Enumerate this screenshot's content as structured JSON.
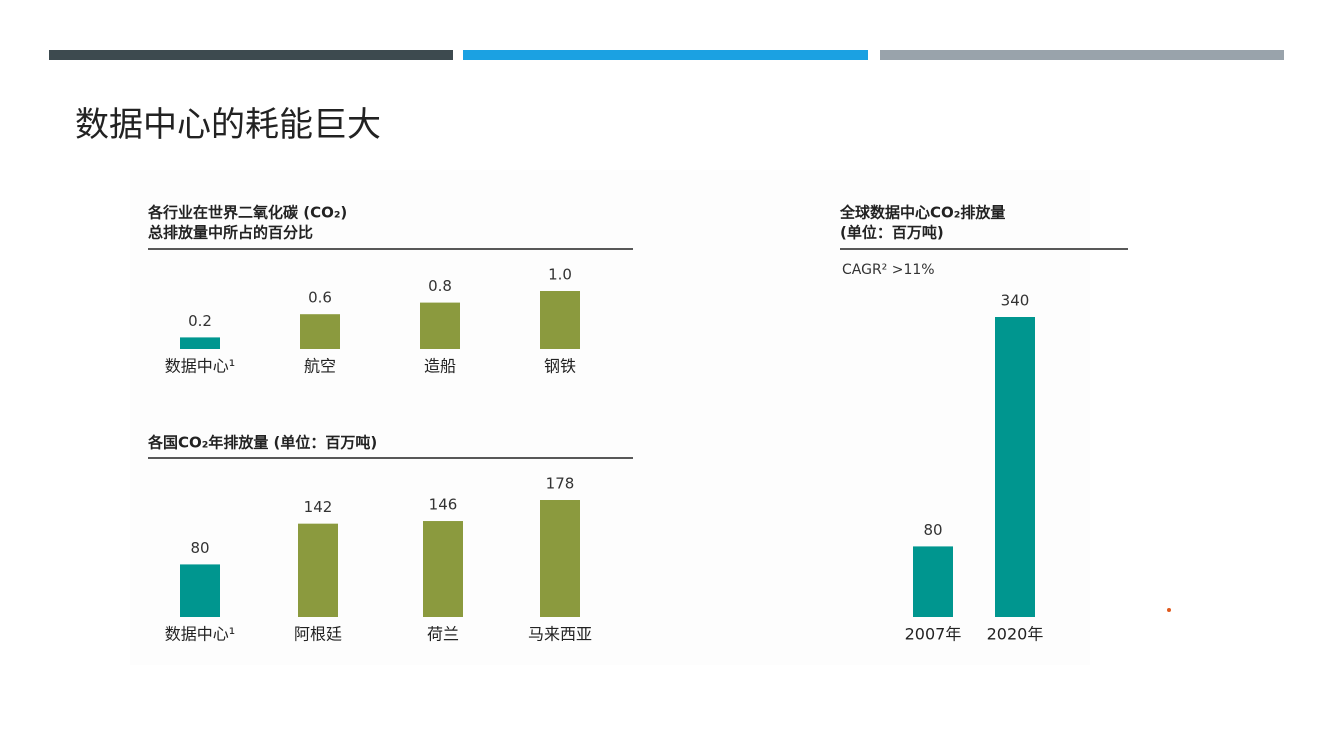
{
  "title": "数据中心的耗能巨大",
  "chart_data": [
    {
      "type": "bar",
      "title": [
        "各行业在世界二氧化碳 (CO₂)",
        "总排放量中所占的百分比"
      ],
      "categories": [
        "数据中心¹",
        "航空",
        "造船",
        "钢铁"
      ],
      "values": [
        0.2,
        0.6,
        0.8,
        1.0
      ],
      "value_labels": [
        "0.2",
        "0.6",
        "0.8",
        "1.0"
      ],
      "colors": [
        "#00968f",
        "#8b9a3e",
        "#8b9a3e",
        "#8b9a3e"
      ]
    },
    {
      "type": "bar",
      "title": [
        "各国CO₂年排放量 (单位：百万吨)"
      ],
      "categories": [
        "数据中心¹",
        "阿根廷",
        "荷兰",
        "马来西亚"
      ],
      "values": [
        80,
        142,
        146,
        178
      ],
      "colors": [
        "#00968f",
        "#8b9a3e",
        "#8b9a3e",
        "#8b9a3e"
      ]
    },
    {
      "type": "bar",
      "title": [
        "全球数据中心CO₂排放量",
        "(单位：百万吨)"
      ],
      "annotation": "CAGR² >11%",
      "categories": [
        "2007年",
        "2020年"
      ],
      "values": [
        80,
        340
      ],
      "colors": [
        "#00968f",
        "#00968f"
      ]
    }
  ]
}
